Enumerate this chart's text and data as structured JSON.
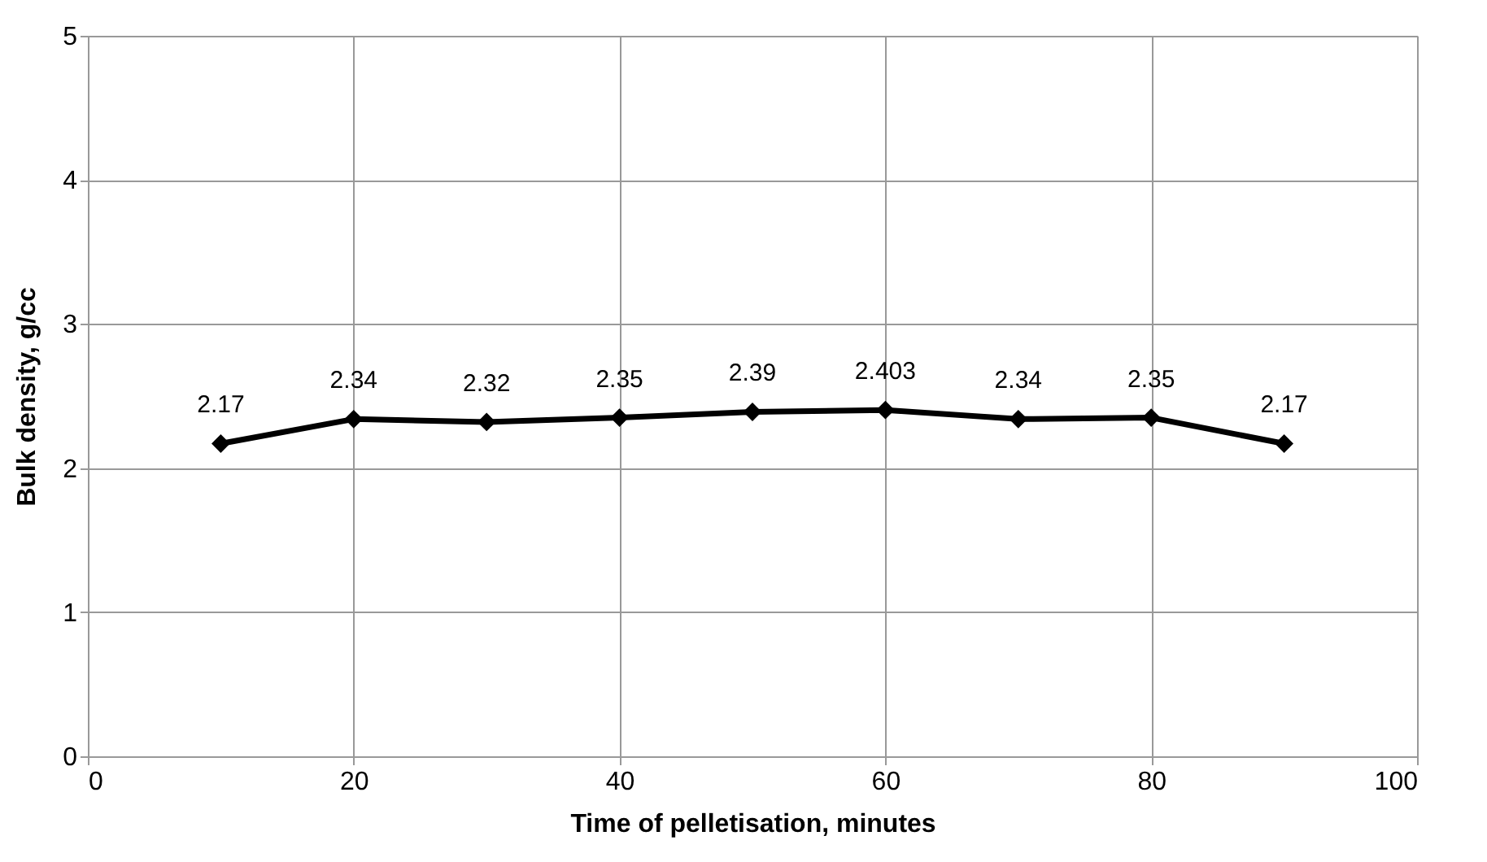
{
  "chart_data": {
    "type": "line",
    "xlabel": "Time of pelletisation, minutes",
    "ylabel": "Bulk density, g/cc",
    "x": [
      10,
      20,
      30,
      40,
      50,
      60,
      70,
      80,
      90
    ],
    "series": [
      {
        "color": "#000000",
        "values": [
          2.17,
          2.34,
          2.32,
          2.35,
          2.39,
          2.403,
          2.34,
          2.35,
          2.17
        ]
      }
    ],
    "xlim": [
      0,
      100
    ],
    "xticks": [
      0,
      20,
      40,
      60,
      80,
      100
    ],
    "ylim": [
      0,
      5
    ],
    "yticks": [
      0,
      1,
      2,
      3,
      4,
      5
    ],
    "grid": true,
    "marker": "diamond",
    "line_style": "solid",
    "data_labels": true
  }
}
